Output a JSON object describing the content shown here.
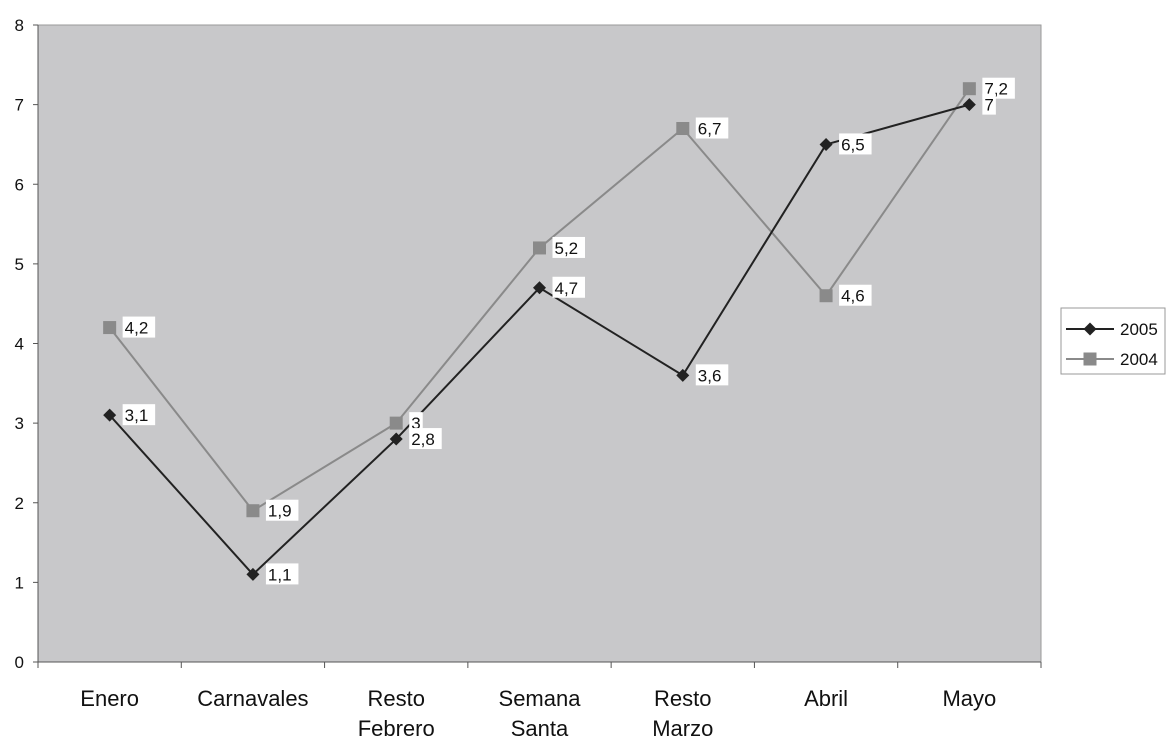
{
  "chart_data": {
    "type": "line",
    "categories": [
      [
        "Enero"
      ],
      [
        "Carnavales"
      ],
      [
        "Resto",
        "Febrero"
      ],
      [
        "Semana",
        "Santa"
      ],
      [
        "Resto",
        "Marzo"
      ],
      [
        "Abril"
      ],
      [
        "Mayo"
      ]
    ],
    "ylim": [
      0,
      8
    ],
    "yticks": [
      "0",
      "1",
      "2",
      "3",
      "4",
      "5",
      "6",
      "7",
      "8"
    ],
    "grid": false,
    "legend_position": "right",
    "plot_background": "#c8c8ca",
    "series": [
      {
        "name": "2005",
        "marker": "diamond",
        "color": "#222222",
        "values": [
          3.1,
          1.1,
          2.8,
          4.7,
          3.6,
          6.5,
          7
        ],
        "labels": [
          "3,1",
          "1,1",
          "2,8",
          "4,7",
          "3,6",
          "6,5",
          "7"
        ]
      },
      {
        "name": "2004",
        "marker": "square",
        "color": "#8a8a8a",
        "values": [
          4.2,
          1.9,
          3,
          5.2,
          6.7,
          4.6,
          7.2
        ],
        "labels": [
          "4,2",
          "1,9",
          "3",
          "5,2",
          "6,7",
          "4,6",
          "7,2"
        ]
      }
    ]
  }
}
